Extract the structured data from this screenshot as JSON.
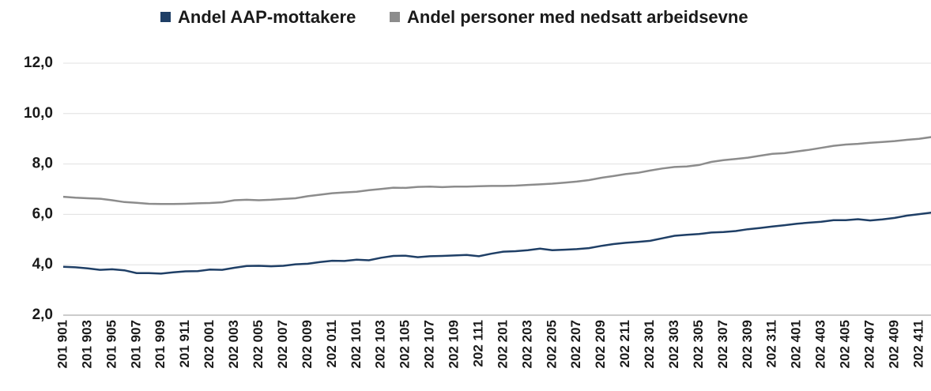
{
  "chart_data": {
    "type": "line",
    "categories": [
      "201 901",
      null,
      "201 903",
      null,
      "201 905",
      null,
      "201 907",
      null,
      "201 909",
      null,
      "201 911",
      null,
      "202 001",
      null,
      "202 003",
      null,
      "202 005",
      null,
      "202 007",
      null,
      "202 009",
      null,
      "202 011",
      null,
      "202 101",
      null,
      "202 103",
      null,
      "202 105",
      null,
      "202 107",
      null,
      "202 109",
      null,
      "202 111",
      null,
      "202 201",
      null,
      "202 203",
      null,
      "202 205",
      null,
      "202 207",
      null,
      "202 209",
      null,
      "202 211",
      null,
      "202 301",
      null,
      "202 303",
      null,
      "202 305",
      null,
      "202 307",
      null,
      "202 309",
      null,
      "202 311",
      null,
      "202 401",
      null,
      "202 403",
      null,
      "202 405",
      null,
      "202 407",
      null,
      "202 409",
      null,
      "202 411",
      null
    ],
    "series": [
      {
        "name": "Andel AAP-mottakere",
        "color": "#1f3f66",
        "values": [
          3.92,
          3.9,
          3.86,
          3.8,
          3.82,
          3.78,
          3.67,
          3.67,
          3.65,
          3.7,
          3.74,
          3.75,
          3.81,
          3.8,
          3.88,
          3.95,
          3.96,
          3.94,
          3.96,
          4.02,
          4.04,
          4.11,
          4.16,
          4.15,
          4.2,
          4.18,
          4.28,
          4.35,
          4.36,
          4.3,
          4.34,
          4.35,
          4.37,
          4.39,
          4.34,
          4.44,
          4.52,
          4.54,
          4.58,
          4.64,
          4.58,
          4.6,
          4.62,
          4.66,
          4.75,
          4.82,
          4.87,
          4.91,
          4.95,
          5.05,
          5.15,
          5.19,
          5.22,
          5.28,
          5.3,
          5.34,
          5.41,
          5.46,
          5.52,
          5.57,
          5.63,
          5.67,
          5.71,
          5.77,
          5.77,
          5.81,
          5.76,
          5.8,
          5.86,
          5.95,
          6.01,
          6.07
        ]
      },
      {
        "name": "Andel personer med nedsatt arbeidsevne",
        "color": "#8c8c8c",
        "values": [
          6.7,
          6.66,
          6.64,
          6.62,
          6.56,
          6.49,
          6.46,
          6.42,
          6.41,
          6.41,
          6.42,
          6.44,
          6.45,
          6.48,
          6.56,
          6.58,
          6.56,
          6.58,
          6.61,
          6.64,
          6.72,
          6.78,
          6.84,
          6.87,
          6.9,
          6.96,
          7.01,
          7.06,
          7.05,
          7.09,
          7.1,
          7.08,
          7.1,
          7.1,
          7.12,
          7.13,
          7.13,
          7.14,
          7.17,
          7.19,
          7.22,
          7.26,
          7.3,
          7.36,
          7.45,
          7.52,
          7.6,
          7.65,
          7.74,
          7.82,
          7.88,
          7.9,
          7.96,
          8.08,
          8.15,
          8.2,
          8.25,
          8.33,
          8.4,
          8.43,
          8.5,
          8.56,
          8.64,
          8.72,
          8.77,
          8.8,
          8.84,
          8.87,
          8.91,
          8.96,
          9.0,
          9.07
        ]
      }
    ],
    "ylim": [
      2,
      12
    ],
    "yticks": [
      {
        "value": 2,
        "label": "2,0"
      },
      {
        "value": 4,
        "label": "4,0"
      },
      {
        "value": 6,
        "label": "6,0"
      },
      {
        "value": 8,
        "label": "8,0"
      },
      {
        "value": 10,
        "label": "10,0"
      },
      {
        "value": 12,
        "label": "12,0"
      }
    ],
    "grid": true,
    "legend": "top"
  }
}
